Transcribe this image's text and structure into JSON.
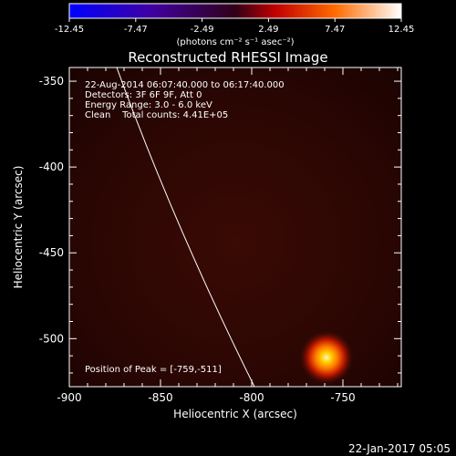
{
  "colorbar": {
    "ticks": [
      "-12.45",
      "-7.47",
      "-2.49",
      "2.49",
      "7.47",
      "12.45"
    ],
    "unit_label": "(photons cm⁻² s⁻¹ asec⁻²)"
  },
  "plot": {
    "title": "Reconstructed RHESSI Image",
    "x_axis_label": "Heliocentric X (arcsec)",
    "y_axis_label": "Heliocentric Y (arcsec)",
    "x_ticks": [
      "-900",
      "-850",
      "-800",
      "-750"
    ],
    "y_ticks": [
      "-350",
      "-400",
      "-450",
      "-500"
    ],
    "x_range": [
      -900,
      -718
    ],
    "y_range": [
      -528,
      -342
    ]
  },
  "info_lines": [
    "22-Aug-2014 06:07:40.000 to 06:17:40.000",
    "Detectors: 3F 6F 9F, Att 0",
    "Energy Range: 3.0 - 6.0 keV",
    "Clean    Total counts: 4.41E+05"
  ],
  "peak_label": "Position of Peak = [-759,-511]",
  "peak": {
    "x": -759,
    "y": -511
  },
  "timestamp": "22-Jan-2017 05:05",
  "colors": {
    "background": "#000000",
    "text": "#ffffff",
    "limb": "#ffffff"
  }
}
